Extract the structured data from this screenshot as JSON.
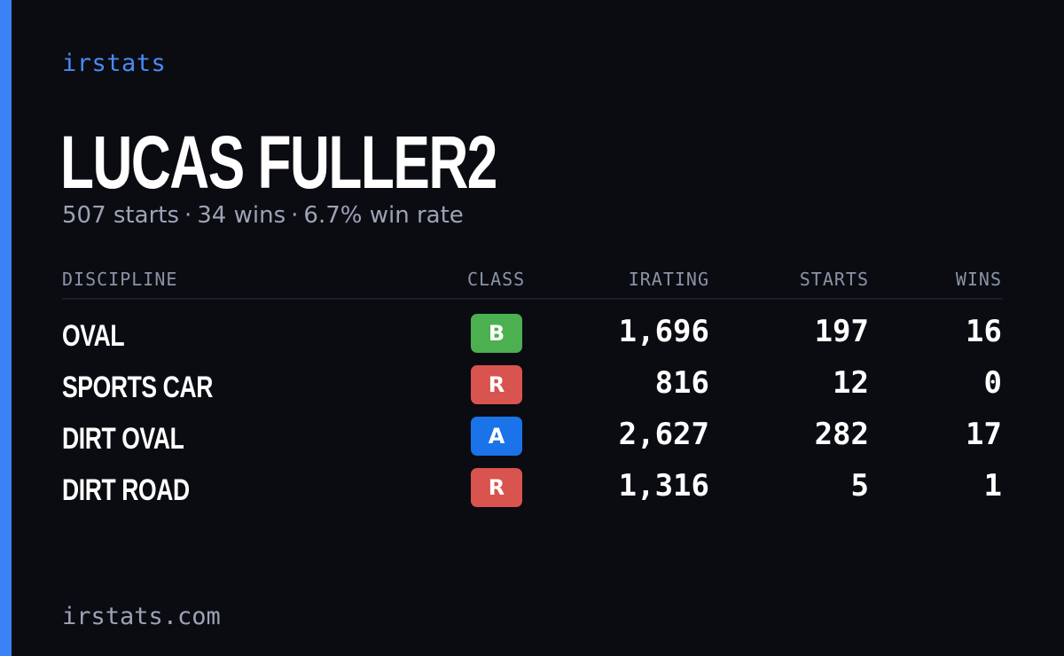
{
  "brand": "irstats",
  "driver_name": "LUCAS FULLER2",
  "summary": {
    "starts": "507 starts",
    "wins": "34 wins",
    "win_rate": "6.7% win rate",
    "separator": "·"
  },
  "columns": {
    "discipline": "DISCIPLINE",
    "class": "CLASS",
    "irating": "IRATING",
    "starts": "STARTS",
    "wins": "WINS"
  },
  "rows": [
    {
      "discipline": "OVAL",
      "class": "B",
      "class_color": "#4caf50",
      "irating": "1,696",
      "starts": "197",
      "wins": "16"
    },
    {
      "discipline": "SPORTS CAR",
      "class": "R",
      "class_color": "#d9534f",
      "irating": "816",
      "starts": "12",
      "wins": "0"
    },
    {
      "discipline": "DIRT OVAL",
      "class": "A",
      "class_color": "#1a73e8",
      "irating": "2,627",
      "starts": "282",
      "wins": "17"
    },
    {
      "discipline": "DIRT ROAD",
      "class": "R",
      "class_color": "#d9534f",
      "irating": "1,316",
      "starts": "5",
      "wins": "1"
    }
  ],
  "footer": "irstats.com",
  "colors": {
    "accent": "#3b82f6",
    "background": "#0a0c12",
    "muted_text": "#9ca3b5"
  }
}
